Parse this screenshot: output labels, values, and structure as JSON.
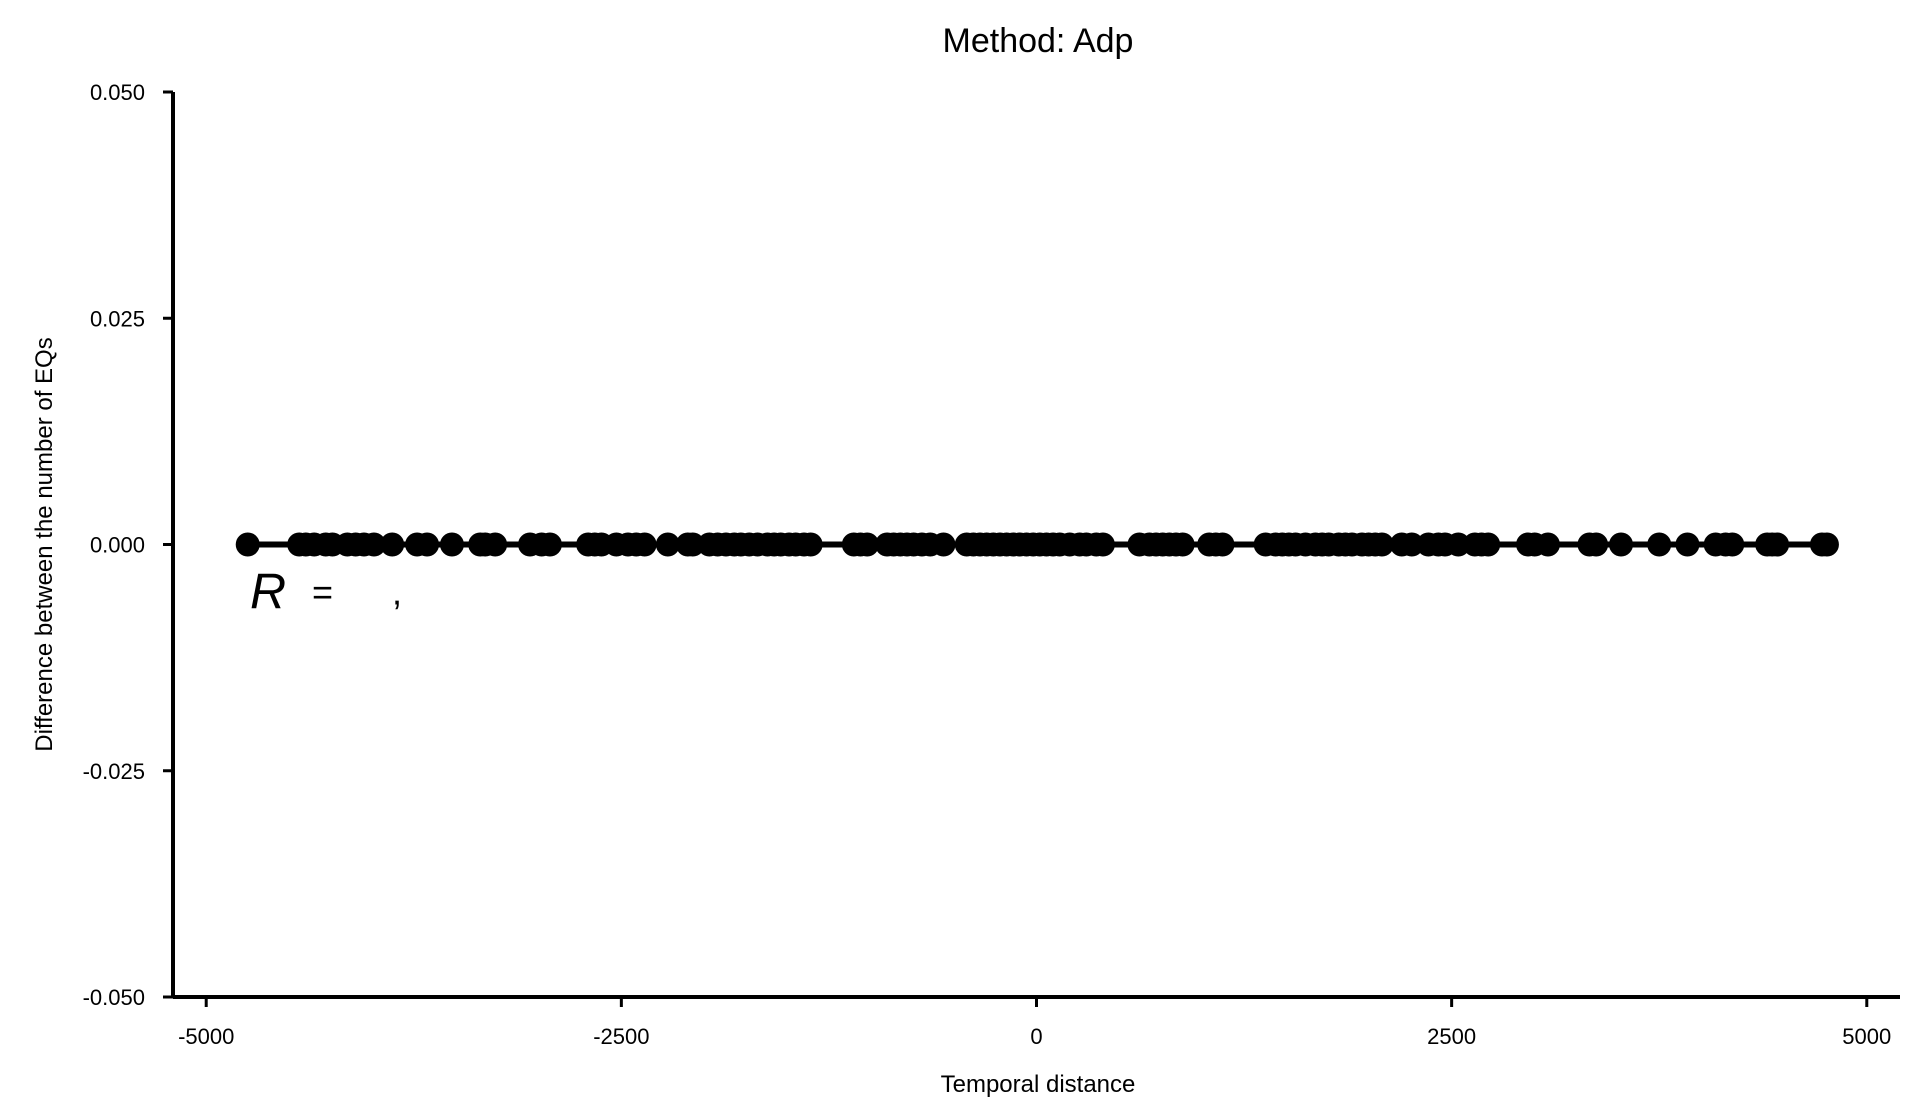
{
  "chart_data": {
    "type": "line",
    "title": "Method: Adp",
    "xlabel": "Temporal distance",
    "ylabel": "Difference between the number of EQs",
    "xlim": [
      -5200,
      5200
    ],
    "ylim": [
      -0.05,
      0.05
    ],
    "xticks": [
      -5000,
      -2500,
      0,
      2500,
      5000
    ],
    "xtick_labels": [
      "-5000",
      "-2500",
      "0",
      "2500",
      "5000"
    ],
    "yticks": [
      -0.05,
      -0.025,
      0,
      0.025,
      0.05
    ],
    "ytick_labels": [
      "-0.050",
      "-0.025",
      "0.000",
      "0.025",
      "0.050"
    ],
    "grid": false,
    "annotation": {
      "r_symbol": "R",
      "equals": "=",
      "comma": ","
    },
    "series": [
      {
        "color": "#000000",
        "x": [
          -4750,
          -4440,
          -4400,
          -4350,
          -4280,
          -4240,
          -4150,
          -4100,
          -4050,
          -3990,
          -3880,
          -3730,
          -3670,
          -3520,
          -3350,
          -3320,
          -3260,
          -3050,
          -2980,
          -2930,
          -2700,
          -2660,
          -2620,
          -2530,
          -2460,
          -2410,
          -2360,
          -2220,
          -2100,
          -2070,
          -1970,
          -1920,
          -1870,
          -1820,
          -1780,
          -1730,
          -1680,
          -1620,
          -1580,
          -1540,
          -1490,
          -1450,
          -1400,
          -1360,
          -1100,
          -1060,
          -1020,
          -900,
          -860,
          -820,
          -780,
          -740,
          -690,
          -640,
          -560,
          -420,
          -380,
          -340,
          -300,
          -260,
          -220,
          -180,
          -140,
          -100,
          -60,
          -20,
          20,
          60,
          100,
          140,
          200,
          260,
          300,
          360,
          400,
          620,
          680,
          720,
          760,
          800,
          840,
          880,
          1040,
          1080,
          1120,
          1380,
          1440,
          1480,
          1520,
          1560,
          1620,
          1680,
          1720,
          1760,
          1820,
          1860,
          1900,
          1960,
          2000,
          2040,
          2080,
          2200,
          2260,
          2360,
          2420,
          2460,
          2540,
          2640,
          2680,
          2720,
          2960,
          3000,
          3080,
          3330,
          3370,
          3520,
          3750,
          3920,
          4090,
          4150,
          4190,
          4400,
          4430,
          4460,
          4730,
          4760
        ],
        "y": [
          0,
          0,
          0,
          0,
          0,
          0,
          0,
          0,
          0,
          0,
          0,
          0,
          0,
          0,
          0,
          0,
          0,
          0,
          0,
          0,
          0,
          0,
          0,
          0,
          0,
          0,
          0,
          0,
          0,
          0,
          0,
          0,
          0,
          0,
          0,
          0,
          0,
          0,
          0,
          0,
          0,
          0,
          0,
          0,
          0,
          0,
          0,
          0,
          0,
          0,
          0,
          0,
          0,
          0,
          0,
          0,
          0,
          0,
          0,
          0,
          0,
          0,
          0,
          0,
          0,
          0,
          0,
          0,
          0,
          0,
          0,
          0,
          0,
          0,
          0,
          0,
          0,
          0,
          0,
          0,
          0,
          0,
          0,
          0,
          0,
          0,
          0,
          0,
          0,
          0,
          0,
          0,
          0,
          0,
          0,
          0,
          0,
          0,
          0,
          0,
          0,
          0,
          0,
          0,
          0,
          0,
          0,
          0,
          0,
          0,
          0,
          0,
          0,
          0,
          0,
          0,
          0,
          0,
          0,
          0,
          0,
          0,
          0,
          0,
          0,
          0
        ]
      }
    ]
  }
}
